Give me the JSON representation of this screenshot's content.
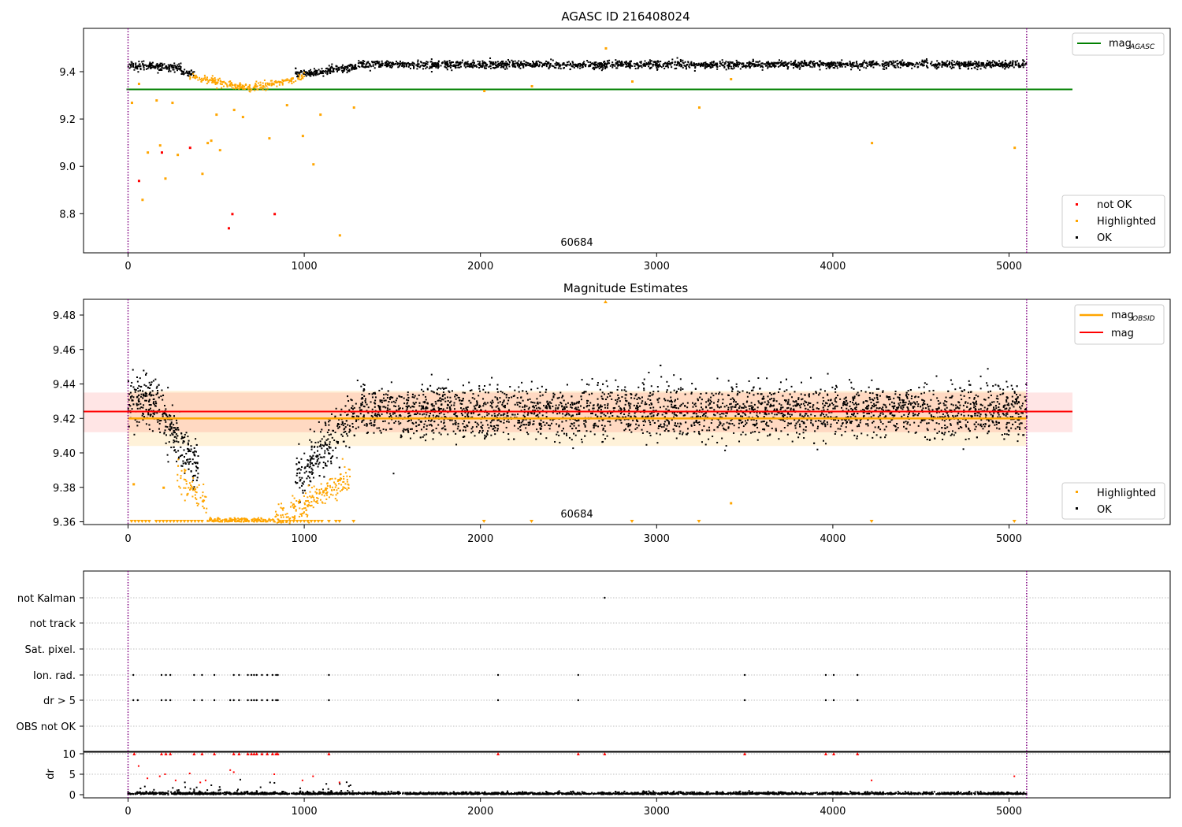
{
  "panels": {
    "top": {
      "title": "AGASC ID 216408024",
      "annotation": "60684",
      "legend_line_label": "mag",
      "legend_line_sub": "AGASC",
      "legend_points": [
        "not OK",
        "Highlighted",
        "OK"
      ],
      "yticks": [
        "9.4",
        "9.2",
        "9.0",
        "8.8"
      ],
      "xticks": [
        "0",
        "1000",
        "2000",
        "3000",
        "4000",
        "5000"
      ]
    },
    "middle": {
      "title": "Magnitude Estimates",
      "annotation": "60684",
      "legend_line1_label": "mag",
      "legend_line1_sub": "OBSID",
      "legend_line2_label": "mag",
      "legend_points": [
        "Highlighted",
        "OK"
      ],
      "yticks": [
        "9.48",
        "9.46",
        "9.44",
        "9.42",
        "9.40",
        "9.38",
        "9.36"
      ],
      "xticks": [
        "0",
        "1000",
        "2000",
        "3000",
        "4000",
        "5000"
      ]
    },
    "flags": {
      "labels": [
        "not Kalman",
        "not track",
        "Sat. pixel.",
        "Ion. rad.",
        "dr > 5",
        "OBS not OK"
      ]
    },
    "dr": {
      "ylabel": "dr",
      "yticks": [
        "10",
        "5",
        "0"
      ],
      "xticks": [
        "0",
        "1000",
        "2000",
        "3000",
        "4000",
        "5000"
      ]
    }
  },
  "chart_data": [
    {
      "type": "scatter",
      "title": "AGASC ID 216408024",
      "xlim": [
        -250,
        5900
      ],
      "ylim": [
        8.64,
        9.58
      ],
      "obsid_boundaries": [
        0,
        5100
      ],
      "reference_line": {
        "name": "mag_AGASC",
        "y": 9.325,
        "color": "#008000"
      },
      "series": [
        {
          "name": "OK",
          "color": "#000000",
          "description": "dense band near 9.43, dips to ~9.39 between 300 and 1000"
        },
        {
          "name": "Highlighted",
          "color": "#FFA500",
          "x": [
            20,
            60,
            80,
            110,
            160,
            180,
            210,
            250,
            280,
            420,
            450,
            470,
            500,
            520,
            600,
            650,
            800,
            900,
            990,
            1050,
            1090,
            1200,
            1280,
            2020,
            2290,
            2860,
            3240,
            3420,
            4220,
            5030,
            2710
          ],
          "y": [
            9.27,
            9.35,
            8.86,
            9.06,
            9.28,
            9.09,
            8.95,
            9.27,
            9.05,
            8.97,
            9.1,
            9.11,
            9.22,
            9.07,
            9.24,
            9.21,
            9.12,
            9.26,
            9.13,
            9.01,
            9.22,
            8.71,
            9.25,
            9.32,
            9.34,
            9.36,
            9.25,
            9.37,
            9.1,
            9.08,
            9.5
          ]
        },
        {
          "name": "not OK",
          "color": "#FF0000",
          "x": [
            60,
            190,
            350,
            570,
            590,
            830
          ],
          "y": [
            8.94,
            9.06,
            9.08,
            8.74,
            8.8,
            8.8
          ]
        }
      ]
    },
    {
      "type": "scatter",
      "title": "Magnitude Estimates",
      "xlim": [
        -250,
        5900
      ],
      "ylim": [
        9.358,
        9.488
      ],
      "obsid_boundaries": [
        0,
        5100
      ],
      "lines": [
        {
          "name": "mag_OBSID",
          "y": 9.42,
          "color": "#FFA500",
          "band": [
            9.404,
            9.436
          ]
        },
        {
          "name": "mag",
          "y": 9.424,
          "color": "#FF0000",
          "band": [
            9.412,
            9.435
          ]
        }
      ],
      "series": [
        {
          "name": "OK",
          "color": "#000000",
          "description": "centered at 9.424 with scatter ~0.008; dips to 9.39 around x=300-400, recovers by 1300"
        },
        {
          "name": "Highlighted",
          "color": "#FFA500",
          "description": "points from 300 to 1250 down to 9.36; isolated points 9.382 at 30, 9.38 at 200, 9.371 at 3420"
        }
      ]
    },
    {
      "type": "scatter",
      "title": "",
      "categories": [
        "not Kalman",
        "not track",
        "Sat. pixel.",
        "Ion. rad.",
        "dr > 5",
        "OBS not OK"
      ],
      "points": {
        "not Kalman": [
          2705
        ],
        "Ion. rad.": [
          30,
          190,
          215,
          240,
          375,
          420,
          490,
          600,
          630,
          680,
          700,
          715,
          730,
          760,
          790,
          820,
          840,
          850,
          1140,
          2100,
          2555,
          3500,
          3960,
          4005,
          4140
        ],
        "dr > 5": [
          30,
          55,
          190,
          215,
          240,
          375,
          420,
          490,
          580,
          600,
          630,
          680,
          700,
          715,
          730,
          760,
          790,
          820,
          840,
          850,
          1140,
          2100,
          2555,
          3500,
          3960,
          4005,
          4140
        ]
      }
    },
    {
      "type": "scatter",
      "ylabel": "dr",
      "ylim": [
        -1,
        11
      ],
      "xlim": [
        -250,
        5900
      ],
      "series": [
        {
          "name": "dr",
          "color": "#000000",
          "description": "most points near 0.2; scattered values 0-7 below x=1300"
        },
        {
          "name": "clipped",
          "color": "#FF0000",
          "x": [
            35,
            190,
            215,
            240,
            375,
            420,
            490,
            600,
            630,
            680,
            700,
            715,
            730,
            760,
            790,
            820,
            840,
            850,
            1140,
            2100,
            2555,
            2705,
            3500,
            3960,
            4005,
            4140
          ],
          "y": [
            10,
            10,
            10,
            10,
            10,
            10,
            10,
            10,
            10,
            10,
            10,
            10,
            10,
            10,
            10,
            10,
            10,
            10,
            10,
            10,
            10,
            10,
            10,
            10,
            10,
            10
          ]
        }
      ]
    }
  ],
  "colors": {
    "ok": "#000000",
    "highlighted": "#FFA500",
    "not_ok": "#FF0000",
    "agasc_line": "#008000",
    "obsid_line": "#FFA500",
    "mag_line": "#FF0000",
    "boundary": "#800080"
  }
}
